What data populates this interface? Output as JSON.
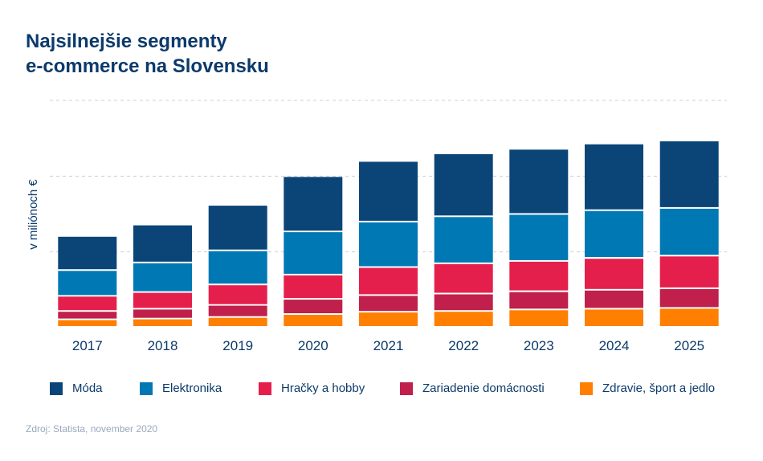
{
  "chart_data": {
    "type": "bar",
    "stacked": true,
    "title_lines": [
      "Najsilnejšie segmenty",
      "e-commerce na Slovensku"
    ],
    "ylabel": "v miliónoch €",
    "xlabel": "",
    "source": "Zdroj: Statista, november 2020",
    "categories": [
      "2017",
      "2018",
      "2019",
      "2020",
      "2021",
      "2022",
      "2023",
      "2024",
      "2025"
    ],
    "ylim": [
      0,
      300
    ],
    "y_ticks_shown": false,
    "grid": "horizontal dashed",
    "legend_position": "bottom",
    "series": [
      {
        "name": "Zdravie, šport a jedlo",
        "color": "#ff7f00",
        "values": [
          10,
          11,
          13,
          17,
          20,
          21,
          23,
          24,
          25
        ]
      },
      {
        "name": "Zariadenie domácnosti",
        "color": "#c0204b",
        "values": [
          11,
          13,
          16,
          20,
          22,
          23,
          24,
          25,
          26
        ]
      },
      {
        "name": "Hračky a hobby",
        "color": "#e51f4b",
        "values": [
          20,
          22,
          27,
          32,
          37,
          40,
          40,
          42,
          43
        ]
      },
      {
        "name": "Elektronika",
        "color": "#0078b4",
        "values": [
          34,
          39,
          45,
          57,
          60,
          62,
          62,
          63,
          63
        ]
      },
      {
        "name": "Móda",
        "color": "#0b4577",
        "values": [
          45,
          50,
          60,
          73,
          80,
          83,
          86,
          88,
          89
        ]
      }
    ]
  }
}
